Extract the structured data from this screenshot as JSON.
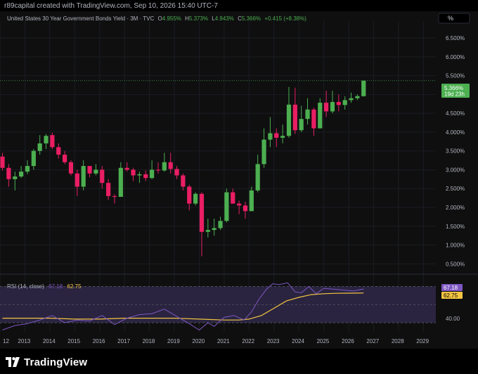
{
  "header": {
    "attribution": "r89capital created with TradingView.com, Sep 10, 2026 15:40 UTC-7"
  },
  "legend": {
    "symbol": "United States 30 Year Government Bonds Yield · 3M · TVC",
    "open_label": "O",
    "open": "4.955%",
    "high_label": "H",
    "high": "5.373%",
    "low_label": "L",
    "low": "4.943%",
    "close_label": "C",
    "close": "5.366%",
    "change": "+0.415 (+8.38%)"
  },
  "scale_button": "%",
  "price_badge": {
    "value": "5.366%",
    "countdown": "19d 23h"
  },
  "rsi": {
    "title": "RSI (14, close)",
    "value": "67.18",
    "ma_value": "62.75",
    "level_label": "40.00",
    "upper_band": 70,
    "lower_band": 30,
    "ylim": [
      20,
      82
    ]
  },
  "colors": {
    "up": "#4caf50",
    "down": "#e91e63",
    "rsi_line": "#7e57c2",
    "rsi_ma": "#f4c542",
    "band": "#2a2440",
    "background": "#0f0f10"
  },
  "footer": {
    "brand": "TradingView",
    "logo_icon": "tradingview-logo-icon"
  },
  "chart_data": {
    "type": "candlestick",
    "ylim": [
      0.3,
      6.8
    ],
    "yticks": [
      "0.500%",
      "1.000%",
      "1.500%",
      "2.000%",
      "2.500%",
      "3.000%",
      "3.500%",
      "4.000%",
      "4.500%",
      "5.000%",
      "5.500%",
      "6.000%",
      "6.500%"
    ],
    "xlim": [
      2012.0,
      2029.5
    ],
    "xticks": [
      "12",
      "2013",
      "2014",
      "2015",
      "2016",
      "2017",
      "2018",
      "2019",
      "2020",
      "2021",
      "2022",
      "2023",
      "2024",
      "2025",
      "2026",
      "2027",
      "2028",
      "2029"
    ],
    "candles": [
      {
        "t": 2012.1,
        "o": 3.35,
        "h": 3.45,
        "l": 2.98,
        "c": 3.05
      },
      {
        "t": 2012.35,
        "o": 3.05,
        "h": 3.15,
        "l": 2.55,
        "c": 2.75
      },
      {
        "t": 2012.6,
        "o": 2.75,
        "h": 2.95,
        "l": 2.45,
        "c": 2.82
      },
      {
        "t": 2012.85,
        "o": 2.82,
        "h": 3.1,
        "l": 2.78,
        "c": 2.95
      },
      {
        "t": 2013.1,
        "o": 2.95,
        "h": 3.25,
        "l": 2.88,
        "c": 3.1
      },
      {
        "t": 2013.35,
        "o": 3.1,
        "h": 3.55,
        "l": 3.0,
        "c": 3.5
      },
      {
        "t": 2013.6,
        "o": 3.5,
        "h": 3.92,
        "l": 3.4,
        "c": 3.7
      },
      {
        "t": 2013.85,
        "o": 3.7,
        "h": 3.95,
        "l": 3.55,
        "c": 3.9
      },
      {
        "t": 2014.1,
        "o": 3.92,
        "h": 3.98,
        "l": 3.55,
        "c": 3.6
      },
      {
        "t": 2014.35,
        "o": 3.6,
        "h": 3.7,
        "l": 3.3,
        "c": 3.4
      },
      {
        "t": 2014.6,
        "o": 3.4,
        "h": 3.5,
        "l": 3.15,
        "c": 3.2
      },
      {
        "t": 2014.85,
        "o": 3.2,
        "h": 3.25,
        "l": 2.85,
        "c": 2.9
      },
      {
        "t": 2015.1,
        "o": 2.9,
        "h": 3.0,
        "l": 2.3,
        "c": 2.55
      },
      {
        "t": 2015.35,
        "o": 2.55,
        "h": 3.25,
        "l": 2.45,
        "c": 3.1
      },
      {
        "t": 2015.6,
        "o": 3.1,
        "h": 3.1,
        "l": 2.8,
        "c": 2.9
      },
      {
        "t": 2015.85,
        "o": 2.9,
        "h": 3.15,
        "l": 2.85,
        "c": 3.0
      },
      {
        "t": 2016.1,
        "o": 3.0,
        "h": 3.1,
        "l": 2.5,
        "c": 2.65
      },
      {
        "t": 2016.35,
        "o": 2.65,
        "h": 2.75,
        "l": 2.2,
        "c": 2.3
      },
      {
        "t": 2016.6,
        "o": 2.3,
        "h": 2.35,
        "l": 2.1,
        "c": 2.28
      },
      {
        "t": 2016.85,
        "o": 2.28,
        "h": 3.2,
        "l": 2.28,
        "c": 3.05
      },
      {
        "t": 2017.1,
        "o": 3.05,
        "h": 3.2,
        "l": 2.95,
        "c": 3.0
      },
      {
        "t": 2017.35,
        "o": 3.0,
        "h": 3.05,
        "l": 2.7,
        "c": 2.85
      },
      {
        "t": 2017.6,
        "o": 2.85,
        "h": 2.95,
        "l": 2.65,
        "c": 2.88
      },
      {
        "t": 2017.85,
        "o": 2.88,
        "h": 2.98,
        "l": 2.7,
        "c": 2.78
      },
      {
        "t": 2018.1,
        "o": 2.78,
        "h": 3.25,
        "l": 2.75,
        "c": 3.0
      },
      {
        "t": 2018.35,
        "o": 3.0,
        "h": 3.2,
        "l": 2.9,
        "c": 2.98
      },
      {
        "t": 2018.6,
        "o": 2.98,
        "h": 3.45,
        "l": 2.95,
        "c": 3.2
      },
      {
        "t": 2018.85,
        "o": 3.2,
        "h": 3.45,
        "l": 2.9,
        "c": 3.02
      },
      {
        "t": 2019.1,
        "o": 3.02,
        "h": 3.1,
        "l": 2.75,
        "c": 2.85
      },
      {
        "t": 2019.35,
        "o": 2.85,
        "h": 2.9,
        "l": 2.45,
        "c": 2.55
      },
      {
        "t": 2019.6,
        "o": 2.55,
        "h": 2.6,
        "l": 1.92,
        "c": 2.1
      },
      {
        "t": 2019.85,
        "o": 2.1,
        "h": 2.4,
        "l": 2.05,
        "c": 2.36
      },
      {
        "t": 2020.1,
        "o": 2.36,
        "h": 2.4,
        "l": 0.7,
        "c": 1.35
      },
      {
        "t": 2020.35,
        "o": 1.35,
        "h": 1.7,
        "l": 1.2,
        "c": 1.4
      },
      {
        "t": 2020.6,
        "o": 1.4,
        "h": 1.7,
        "l": 1.25,
        "c": 1.45
      },
      {
        "t": 2020.85,
        "o": 1.45,
        "h": 1.75,
        "l": 1.4,
        "c": 1.64
      },
      {
        "t": 2021.1,
        "o": 1.64,
        "h": 2.5,
        "l": 1.6,
        "c": 2.4
      },
      {
        "t": 2021.35,
        "o": 2.4,
        "h": 2.5,
        "l": 2.1,
        "c": 2.1
      },
      {
        "t": 2021.6,
        "o": 2.1,
        "h": 2.18,
        "l": 1.82,
        "c": 2.05
      },
      {
        "t": 2021.85,
        "o": 2.05,
        "h": 2.15,
        "l": 1.7,
        "c": 1.9
      },
      {
        "t": 2022.1,
        "o": 1.9,
        "h": 2.55,
        "l": 1.9,
        "c": 2.45
      },
      {
        "t": 2022.35,
        "o": 2.45,
        "h": 3.4,
        "l": 2.4,
        "c": 3.15
      },
      {
        "t": 2022.6,
        "o": 3.15,
        "h": 4.1,
        "l": 3.05,
        "c": 3.8
      },
      {
        "t": 2022.85,
        "o": 3.8,
        "h": 4.4,
        "l": 3.6,
        "c": 3.97
      },
      {
        "t": 2023.1,
        "o": 3.97,
        "h": 4.1,
        "l": 3.6,
        "c": 3.85
      },
      {
        "t": 2023.35,
        "o": 3.85,
        "h": 4.2,
        "l": 3.7,
        "c": 3.9
      },
      {
        "t": 2023.6,
        "o": 3.9,
        "h": 5.2,
        "l": 3.85,
        "c": 4.73
      },
      {
        "t": 2023.85,
        "o": 4.73,
        "h": 5.18,
        "l": 3.95,
        "c": 4.05
      },
      {
        "t": 2024.1,
        "o": 4.05,
        "h": 4.7,
        "l": 4.0,
        "c": 4.35
      },
      {
        "t": 2024.35,
        "o": 4.35,
        "h": 4.9,
        "l": 4.2,
        "c": 4.6
      },
      {
        "t": 2024.6,
        "o": 4.6,
        "h": 4.65,
        "l": 3.9,
        "c": 4.1
      },
      {
        "t": 2024.85,
        "o": 4.1,
        "h": 4.9,
        "l": 4.1,
        "c": 4.78
      },
      {
        "t": 2025.1,
        "o": 4.78,
        "h": 5.1,
        "l": 4.4,
        "c": 4.55
      },
      {
        "t": 2025.35,
        "o": 4.55,
        "h": 5.1,
        "l": 4.5,
        "c": 4.8
      },
      {
        "t": 2025.6,
        "o": 4.8,
        "h": 5.0,
        "l": 4.55,
        "c": 4.72
      },
      {
        "t": 2025.85,
        "o": 4.72,
        "h": 4.95,
        "l": 4.6,
        "c": 4.85
      },
      {
        "t": 2026.1,
        "o": 4.85,
        "h": 5.05,
        "l": 4.78,
        "c": 4.9
      },
      {
        "t": 2026.35,
        "o": 4.9,
        "h": 5.0,
        "l": 4.85,
        "c": 4.955
      },
      {
        "t": 2026.6,
        "o": 4.955,
        "h": 5.373,
        "l": 4.943,
        "c": 5.366
      }
    ],
    "rsi": [
      [
        2012.1,
        22
      ],
      [
        2012.6,
        27
      ],
      [
        2013.1,
        29
      ],
      [
        2013.6,
        33
      ],
      [
        2014.1,
        38
      ],
      [
        2014.6,
        30
      ],
      [
        2015.1,
        33
      ],
      [
        2015.6,
        32
      ],
      [
        2016.1,
        38
      ],
      [
        2016.6,
        28
      ],
      [
        2017.1,
        35
      ],
      [
        2017.6,
        39
      ],
      [
        2018.1,
        40
      ],
      [
        2018.6,
        45
      ],
      [
        2019.1,
        37
      ],
      [
        2019.6,
        29
      ],
      [
        2020.0,
        22
      ],
      [
        2020.35,
        30
      ],
      [
        2020.6,
        26
      ],
      [
        2021.0,
        36
      ],
      [
        2021.4,
        38
      ],
      [
        2021.8,
        33
      ],
      [
        2022.1,
        42
      ],
      [
        2022.4,
        56
      ],
      [
        2022.7,
        67
      ],
      [
        2022.95,
        73
      ],
      [
        2023.2,
        72
      ],
      [
        2023.55,
        74
      ],
      [
        2023.85,
        64
      ],
      [
        2024.1,
        63
      ],
      [
        2024.4,
        70
      ],
      [
        2024.7,
        62
      ],
      [
        2025.0,
        68
      ],
      [
        2025.4,
        67
      ],
      [
        2025.8,
        66
      ],
      [
        2026.2,
        65
      ],
      [
        2026.6,
        67.18
      ]
    ],
    "rsi_ma": [
      [
        2012.1,
        35
      ],
      [
        2013.0,
        35
      ],
      [
        2014.0,
        35
      ],
      [
        2015.0,
        34
      ],
      [
        2016.0,
        34
      ],
      [
        2017.0,
        35
      ],
      [
        2018.0,
        35
      ],
      [
        2019.0,
        35
      ],
      [
        2020.0,
        34
      ],
      [
        2021.0,
        33
      ],
      [
        2021.6,
        33
      ],
      [
        2022.0,
        34
      ],
      [
        2022.5,
        38
      ],
      [
        2023.0,
        46
      ],
      [
        2023.5,
        54
      ],
      [
        2024.0,
        58
      ],
      [
        2024.5,
        61
      ],
      [
        2025.0,
        62
      ],
      [
        2025.5,
        62.5
      ],
      [
        2026.0,
        62.6
      ],
      [
        2026.6,
        62.75
      ]
    ]
  }
}
